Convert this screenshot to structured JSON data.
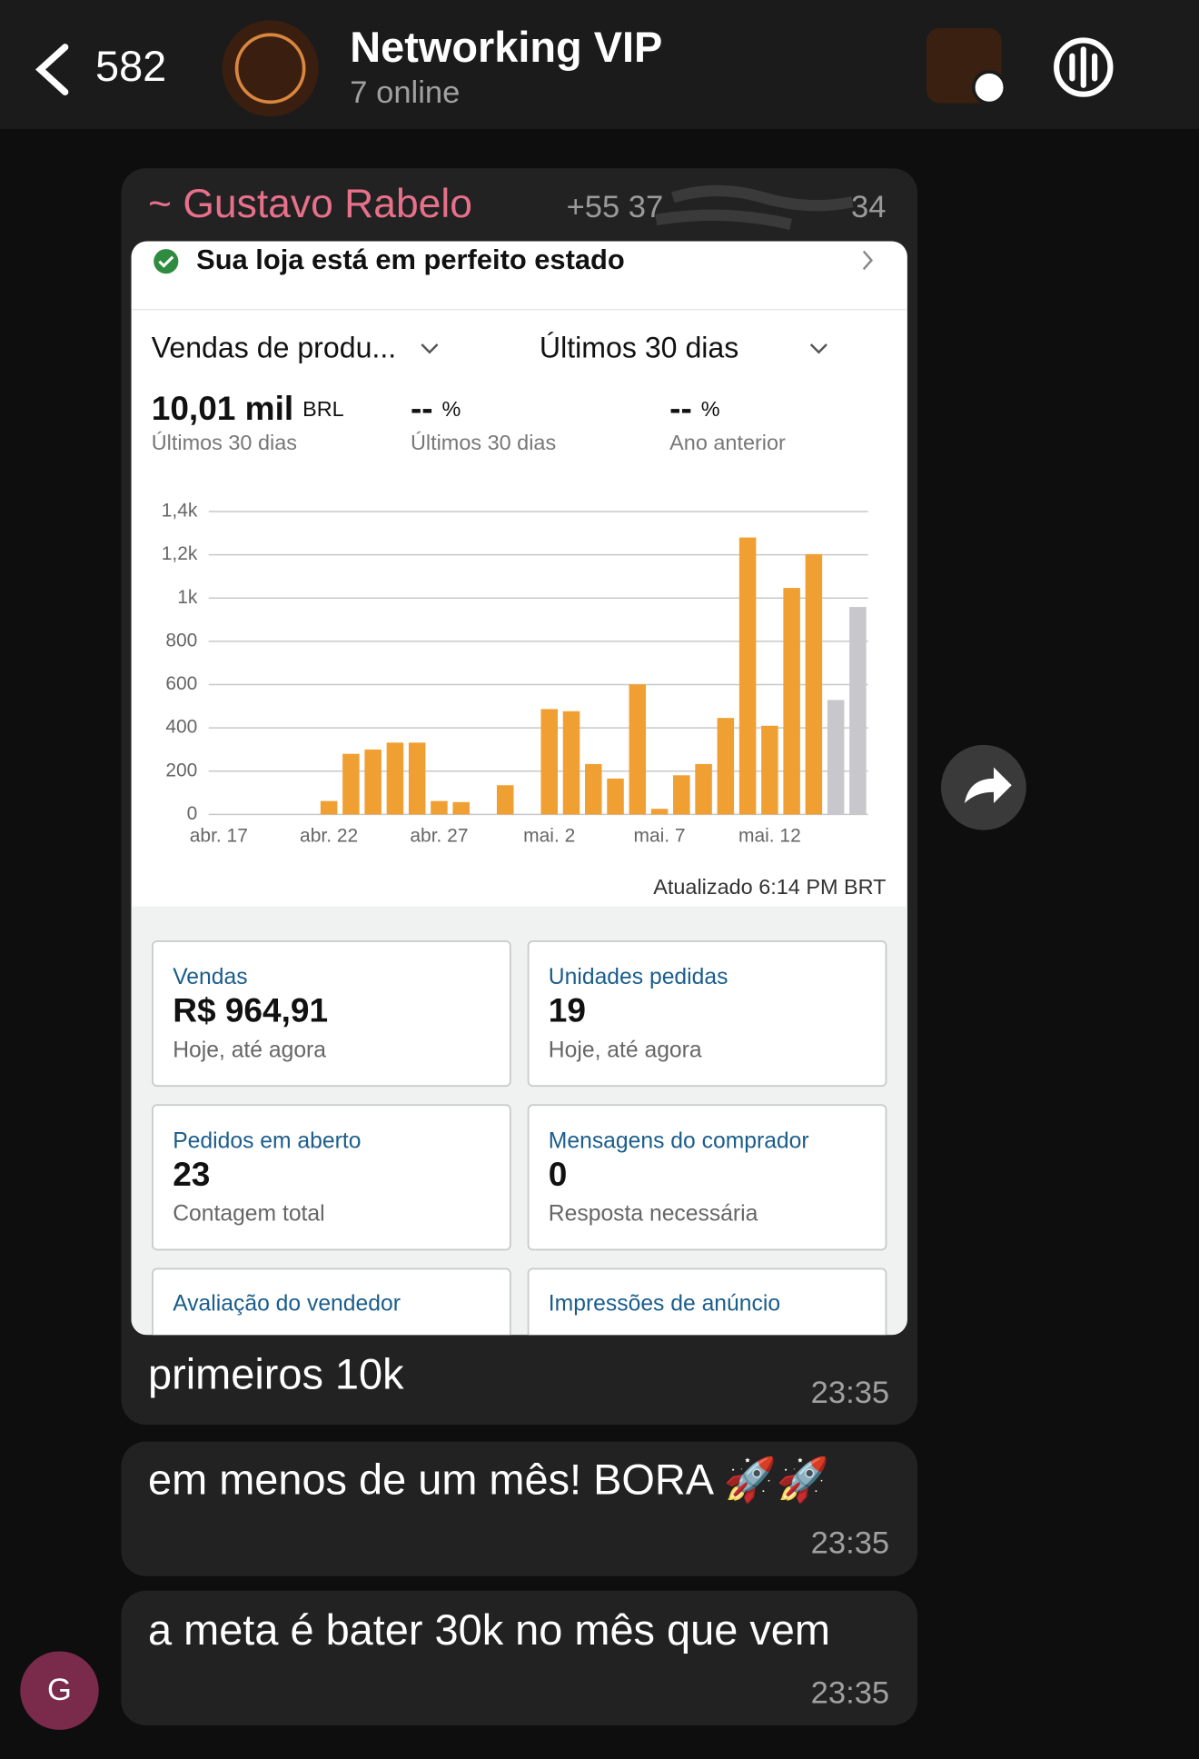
{
  "header": {
    "back_count": "582",
    "title": "Networking VIP",
    "subtitle": "7 online"
  },
  "message": {
    "sender": "~ Gustavo Rabelo",
    "phone_start": "+55 37",
    "phone_end": "34",
    "screenshot": {
      "status": "Sua loja está em perfeito estado",
      "metric_selector": "Vendas de produ...",
      "period_selector": "Últimos 30 dias",
      "kpis": [
        {
          "value": "10,01 mil",
          "unit": "BRL",
          "label": "Últimos 30 dias"
        },
        {
          "value": "--",
          "unit": "%",
          "label": "Últimos 30 dias"
        },
        {
          "value": "--",
          "unit": "%",
          "label": "Ano anterior"
        }
      ],
      "chart": {
        "type": "bar",
        "categories": [
          "abr. 17",
          null,
          null,
          null,
          null,
          "abr. 22",
          null,
          null,
          null,
          null,
          "abr. 27",
          null,
          null,
          null,
          null,
          "mai. 2",
          null,
          null,
          null,
          null,
          "mai. 7",
          null,
          null,
          null,
          null,
          "mai. 12",
          null,
          null,
          null,
          null
        ],
        "values": [
          0,
          0,
          0,
          0,
          0,
          62,
          280,
          300,
          332,
          332,
          62,
          57,
          0,
          135,
          0,
          487,
          477,
          233,
          166,
          601,
          26,
          181,
          233,
          446,
          1280,
          410,
          1047,
          1203,
          529,
          959
        ],
        "colors": [
          "#f0a033",
          "#f0a033",
          "#f0a033",
          "#f0a033",
          "#f0a033",
          "#f0a033",
          "#f0a033",
          "#f0a033",
          "#f0a033",
          "#f0a033",
          "#f0a033",
          "#f0a033",
          "#f0a033",
          "#f0a033",
          "#f0a033",
          "#f0a033",
          "#f0a033",
          "#f0a033",
          "#f0a033",
          "#f0a033",
          "#f0a033",
          "#f0a033",
          "#f0a033",
          "#f0a033",
          "#f0a033",
          "#f0a033",
          "#f0a033",
          "#f0a033",
          "#c8c8cc",
          "#c8c8cc"
        ],
        "ylim": [
          0,
          1400
        ],
        "yticks": [
          0,
          200,
          400,
          600,
          800,
          {
            "value": 1000,
            "label": "1k"
          },
          {
            "value": 1200,
            "label": "1,2k"
          },
          {
            "value": 1400,
            "label": "1,4k"
          }
        ],
        "grid": true
      },
      "updated": "Atualizado 6:14 PM BRT",
      "cards": [
        {
          "title": "Vendas",
          "value": "R$ 964,91",
          "note": "Hoje, até agora"
        },
        {
          "title": "Unidades pedidas",
          "value": "19",
          "note": "Hoje, até agora"
        },
        {
          "title": "Pedidos em aberto",
          "value": "23",
          "note": "Contagem total"
        },
        {
          "title": "Mensagens do comprador",
          "value": "0",
          "note": "Resposta necessária"
        }
      ],
      "partial_cards": [
        "Avaliação do vendedor",
        "Impressões de anúncio"
      ]
    },
    "caption": "primeiros 10k",
    "time": "23:35"
  },
  "messages": [
    {
      "text": "em menos de um mês! BORA 🚀🚀",
      "time": "23:35"
    },
    {
      "text": "a meta é bater 30k no mês que vem",
      "time": "23:35"
    }
  ],
  "avatar_letter": "G"
}
